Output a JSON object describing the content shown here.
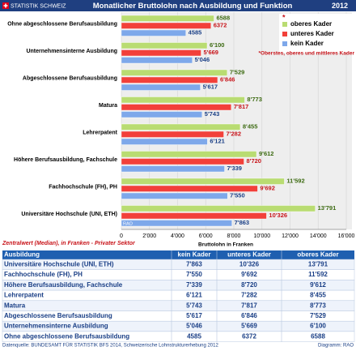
{
  "header": {
    "logo": "STATISTIK SCHWEIZ",
    "title": "Monatlicher Bruttolohn nach Ausbildung und Funktion",
    "year": "2012"
  },
  "chart_data": {
    "type": "bar",
    "orientation": "horizontal",
    "categories": [
      "Ohne abgeschlossene Berufsausbildung",
      "Unternehmensinterne Ausbildung",
      "Abgeschlossene Berufsausbildung",
      "Matura",
      "Lehrerpatent",
      "Höhere Berufsausbildung, Fachschule",
      "Fachhochschule (FH), PH",
      "Universitäre Hochschule (UNI, ETH)"
    ],
    "series": [
      {
        "name": "oberes Kader",
        "color": "#b9dc72",
        "label_color": "#3d6b12",
        "values": [
          6588,
          6100,
          7529,
          8773,
          8455,
          9612,
          11592,
          13791
        ],
        "value_labels": [
          "6588",
          "6'100",
          "7'529",
          "8'773",
          "8'455",
          "9'612",
          "11'592",
          "13'791"
        ]
      },
      {
        "name": "unteres Kader",
        "color": "#f2403a",
        "label_color": "#c8141a",
        "values": [
          6372,
          5669,
          6846,
          7817,
          7282,
          8720,
          9692,
          10326
        ],
        "value_labels": [
          "6372",
          "5'669",
          "6'846",
          "7'817",
          "7'282",
          "8'720",
          "9'692",
          "10'326"
        ]
      },
      {
        "name": "kein Kader",
        "color": "#7ea8ea",
        "label_color": "#1a3f86",
        "values": [
          4585,
          5046,
          5617,
          5743,
          6121,
          7339,
          7550,
          7863
        ],
        "value_labels": [
          "4585",
          "5'046",
          "5'617",
          "5'743",
          "6'121",
          "7'339",
          "7'550",
          "7'863"
        ]
      }
    ],
    "xlim": [
      0,
      16000
    ],
    "xticks": [
      0,
      {
        "value": 2000,
        "label": "2'000"
      },
      {
        "value": 4000,
        "label": "4'000"
      },
      {
        "value": 6000,
        "label": "6'000"
      },
      {
        "value": 8000,
        "label": "8'000"
      },
      {
        "value": 10000,
        "label": "10'000"
      },
      {
        "value": 12000,
        "label": "12'000"
      },
      {
        "value": 14000,
        "label": "14'000"
      },
      {
        "value": 16000,
        "label": "16'000"
      }
    ],
    "xlabel": "Bruttolohn in Franken",
    "grid": true,
    "legend": "top-right",
    "legend_marker": "*",
    "legend_note": "*Oberstes, oberes und mittleres Kader",
    "credit_mark": "RAO"
  },
  "note": "Zentralwert (Median), in Franken - Privater Sektor",
  "table": {
    "columns": [
      "Ausbildung",
      "kein Kader",
      "unteres Kader",
      "oberes Kader"
    ],
    "rows": [
      [
        "Universitäre Hochschule (UNI, ETH)",
        "7'863",
        "10'326",
        "13'791"
      ],
      [
        "Fachhochschule (FH), PH",
        "7'550",
        "9'692",
        "11'592"
      ],
      [
        "Höhere Berufsausbildung, Fachschule",
        "7'339",
        "8'720",
        "9'612"
      ],
      [
        "Lehrerpatent",
        "6'121",
        "7'282",
        "8'455"
      ],
      [
        "Matura",
        "5'743",
        "7'817",
        "8'773"
      ],
      [
        "Abgeschlossene Berufsausbildung",
        "5'617",
        "6'846",
        "7'529"
      ],
      [
        "Unternehmensinterne Ausbildung",
        "5'046",
        "5'669",
        "6'100"
      ],
      [
        "Ohne abgeschlossene Berufsausbildung",
        "4585",
        "6372",
        "6588"
      ]
    ]
  },
  "footer": {
    "source": "Datenquelle: BUNDESAMT FÜR STATISTIK BFS 2014, Schweizerische Lohnstrukturerhebung 2012",
    "credit": "Diagramm: RAO"
  }
}
